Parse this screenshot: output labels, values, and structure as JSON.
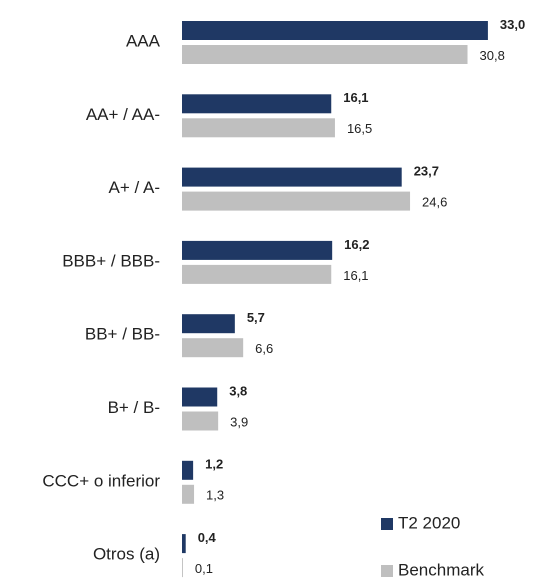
{
  "chart_data": {
    "type": "bar",
    "orientation": "horizontal",
    "categories": [
      "AAA",
      "AA+ / AA-",
      "A+ / A-",
      "BBB+ / BBB-",
      "BB+ / BB-",
      "B+ / B-",
      "CCC+ o inferior",
      "Otros (a)"
    ],
    "series": [
      {
        "name": "T2 2020",
        "color": "#1f3864",
        "values": [
          33.0,
          16.1,
          23.7,
          16.2,
          5.7,
          3.8,
          1.2,
          0.4
        ],
        "value_labels": [
          "33,0",
          "16,1",
          "23,7",
          "16,2",
          "5,7",
          "3,8",
          "1,2",
          "0,4"
        ]
      },
      {
        "name": "Benchmark",
        "color": "#bfbfbf",
        "values": [
          30.8,
          16.5,
          24.6,
          16.1,
          6.6,
          3.9,
          1.3,
          0.1
        ],
        "value_labels": [
          "30,8",
          "16,5",
          "24,6",
          "16,1",
          "6,6",
          "3,9",
          "1,3",
          "0,1"
        ]
      }
    ],
    "legend": "lower right"
  }
}
